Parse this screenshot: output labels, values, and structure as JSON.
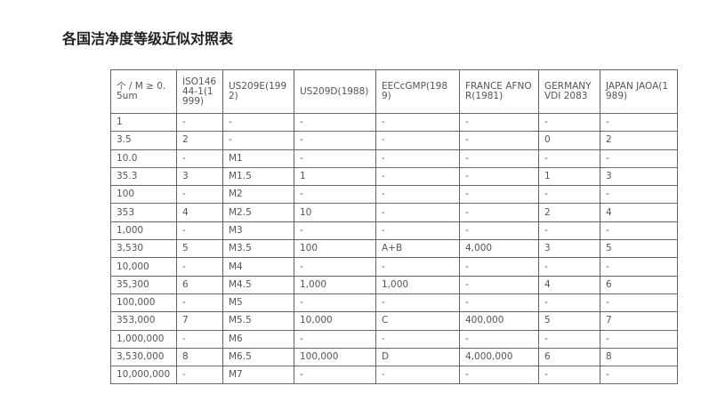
{
  "title": "各国洁净度等级近似对照表",
  "table": {
    "headers": [
      "个 / M ≥ 0.5um",
      "ISO14644-1(1999)",
      "US209E(1992)",
      "US209D(1988)",
      "EECcGMP(1989)",
      "FRANCE AFNOR(1981)",
      "GERMANY VDI 2083",
      "JAPAN JAOA(1989)"
    ],
    "rows": [
      [
        "1",
        "-",
        "-",
        "-",
        "-",
        "-",
        "-",
        "-"
      ],
      [
        "3.5",
        "2",
        "-",
        "-",
        "-",
        "-",
        "0",
        "2"
      ],
      [
        "10.0",
        "-",
        "M1",
        "-",
        "-",
        "-",
        "-",
        "-"
      ],
      [
        "35.3",
        "3",
        "M1.5",
        "1",
        "-",
        "-",
        "1",
        "3"
      ],
      [
        "100",
        "-",
        "M2",
        "-",
        "-",
        "-",
        "-",
        "-"
      ],
      [
        "353",
        "4",
        "M2.5",
        "10",
        "-",
        "-",
        "2",
        "4"
      ],
      [
        "1,000",
        "-",
        "M3",
        "-",
        "-",
        "-",
        "-",
        "-"
      ],
      [
        "3,530",
        "5",
        "M3.5",
        "100",
        "A+B",
        "4,000",
        "3",
        "5"
      ],
      [
        "10,000",
        "-",
        "M4",
        "-",
        "-",
        "-",
        "-",
        "-"
      ],
      [
        "35,300",
        "6",
        "M4.5",
        "1,000",
        "1,000",
        "-",
        "4",
        "6"
      ],
      [
        "100,000",
        "-",
        "M5",
        "-",
        "-",
        "-",
        "-",
        "-"
      ],
      [
        "353,000",
        "7",
        "M5.5",
        "10,000",
        "C",
        "400,000",
        "5",
        "7"
      ],
      [
        "1,000,000",
        "-",
        "M6",
        "-",
        "-",
        "-",
        "-",
        "-"
      ],
      [
        "3,530,000",
        "8",
        "M6.5",
        "100,000",
        "D",
        "4,000,000",
        "6",
        "8"
      ],
      [
        "10,000,000",
        "-",
        "M7",
        "-",
        "-",
        "-",
        "-",
        "-"
      ]
    ]
  }
}
